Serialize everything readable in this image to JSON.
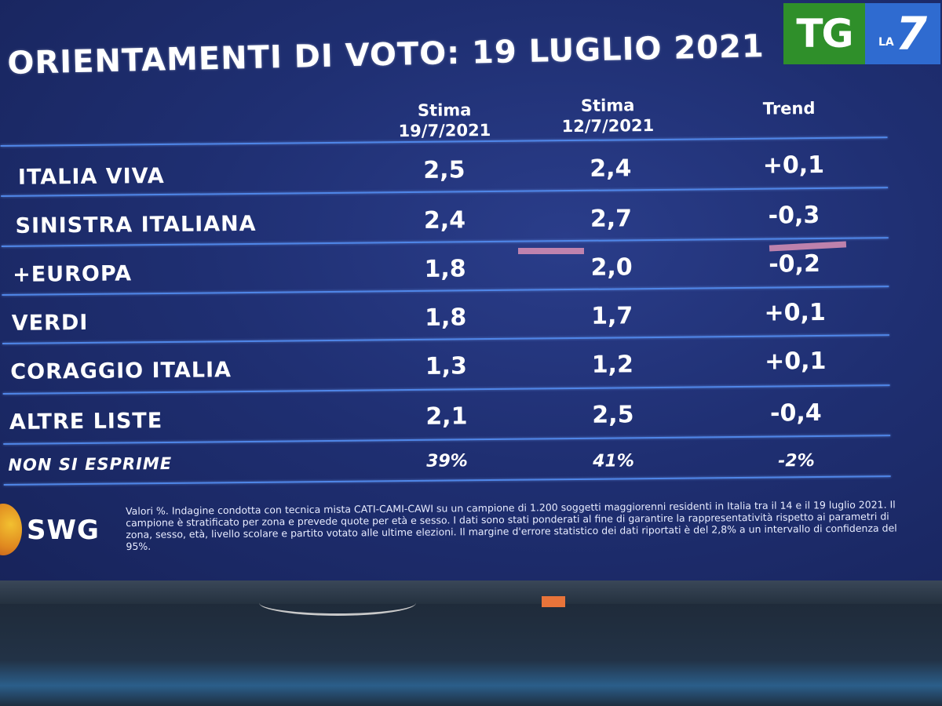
{
  "title": "ORIENTAMENTI DI VOTO: 19 LUGLIO 2021",
  "logo": {
    "tg": "TG",
    "la": "LA",
    "seven": "7"
  },
  "headers": {
    "col1": "Stima 19/7/2021",
    "col1_line1": "Stima",
    "col1_line2": "19/7/2021",
    "col2_line1": "Stima",
    "col2_line2": "12/7/2021",
    "col3": "Trend"
  },
  "rows": [
    {
      "party": "ITALIA VIVA",
      "stima_19": "2,5",
      "stima_12": "2,4",
      "trend": "+0,1"
    },
    {
      "party": "SINISTRA ITALIANA",
      "stima_19": "2,4",
      "stima_12": "2,7",
      "trend": "-0,3"
    },
    {
      "party": "+EUROPA",
      "stima_19": "1,8",
      "stima_12": "2,0",
      "trend": "-0,2"
    },
    {
      "party": "VERDI",
      "stima_19": "1,8",
      "stima_12": "1,7",
      "trend": "+0,1"
    },
    {
      "party": "CORAGGIO ITALIA",
      "stima_19": "1,3",
      "stima_12": "1,2",
      "trend": "+0,1"
    },
    {
      "party": "ALTRE LISTE",
      "stima_19": "2,1",
      "stima_12": "2,5",
      "trend": "-0,4"
    }
  ],
  "non_si_esprime": {
    "label": "NON SI ESPRIME",
    "stima_19": "39%",
    "stima_12": "41%",
    "trend": "-2%"
  },
  "source": "SWG",
  "note": "Valori %. Indagine condotta con tecnica mista CATI-CAMI-CAWI su un campione di 1.200 soggetti maggiorenni residenti in Italia tra il 14 e il 19 luglio 2021. Il campione è stratificato per zona e prevede quote per età e sesso. I dati sono stati ponderati al fine di garantire la rappresentatività rispetto ai parametri di zona, sesso, età, livello scolare e partito votato alle ultime elezioni. Il margine d'errore statistico dei dati riportati è del 2,8% a un intervallo di confidenza del 95%.",
  "colors": {
    "screen": "#1f2f72",
    "rule": "#4f86e8",
    "tg_green": "#2f8f2a",
    "la7_blue": "#2f6bd0"
  }
}
